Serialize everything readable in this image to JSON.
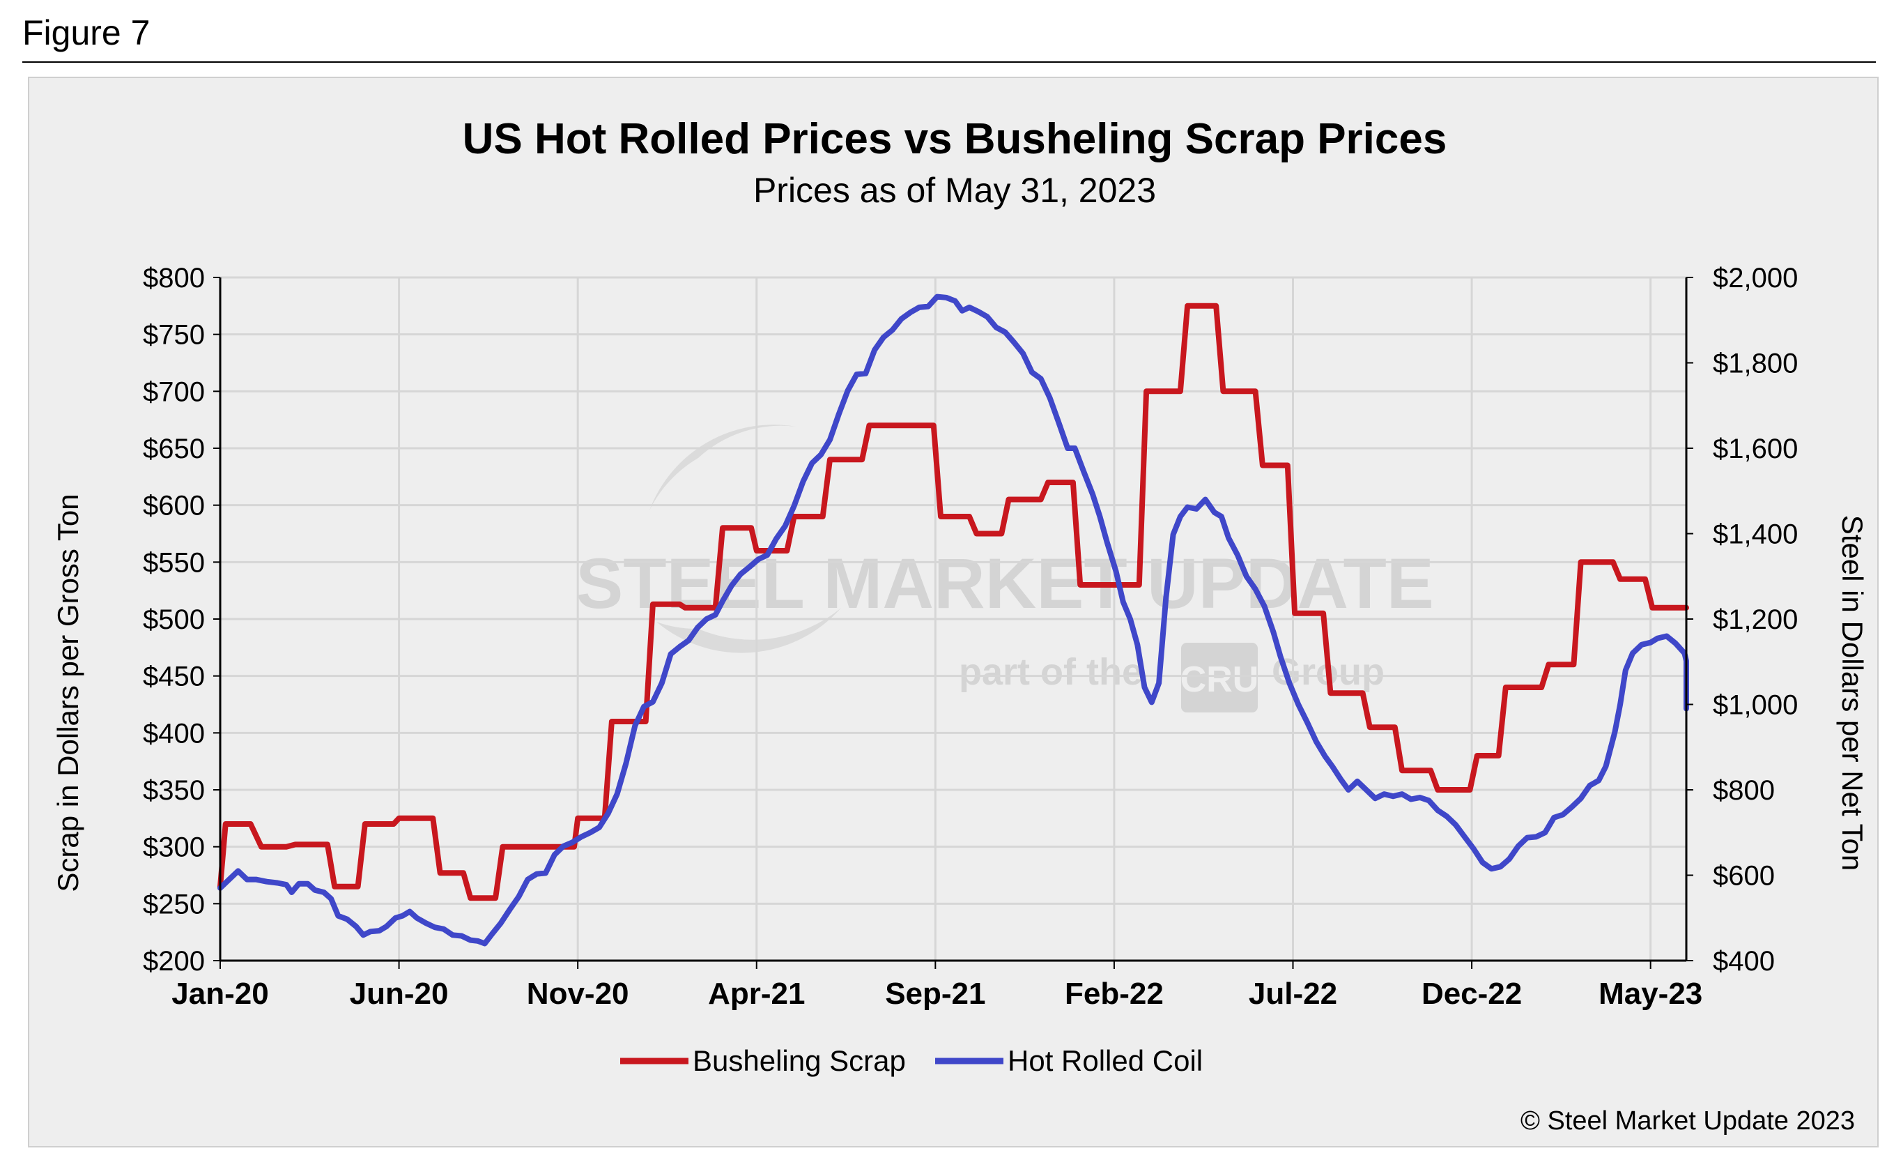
{
  "figure_label": "Figure 7",
  "copyright": "© Steel Market Update 2023",
  "watermark": {
    "brand": "STEEL MARKET UPDATE",
    "tagline_start": "part of the",
    "logo_text": "CRU",
    "tagline_end": "Group"
  },
  "colors": {
    "scrap": "#c8171e",
    "hrc": "#3f47c9",
    "background": "#eeeeee",
    "grid": "#d6d6d6"
  },
  "chart_data": {
    "type": "line",
    "title": "US Hot Rolled Prices vs Busheling Scrap Prices",
    "subtitle": "Prices as of May 31, 2023",
    "ylabel": "Scrap in Dollars per Gross Ton",
    "y2label": "Steel in Dollars per Net Ton",
    "ylim": [
      200,
      800
    ],
    "y2lim": [
      400,
      2000
    ],
    "x_range_months": [
      0,
      41
    ],
    "x_ticks": [
      {
        "month": 0,
        "label": "Jan-20"
      },
      {
        "month": 5,
        "label": "Jun-20"
      },
      {
        "month": 10,
        "label": "Nov-20"
      },
      {
        "month": 15,
        "label": "Apr-21"
      },
      {
        "month": 20,
        "label": "Sep-21"
      },
      {
        "month": 25,
        "label": "Feb-22"
      },
      {
        "month": 30,
        "label": "Jul-22"
      },
      {
        "month": 35,
        "label": "Dec-22"
      },
      {
        "month": 40,
        "label": "May-23"
      }
    ],
    "y_ticks": [
      "$200",
      "$250",
      "$300",
      "$350",
      "$400",
      "$450",
      "$500",
      "$550",
      "$600",
      "$650",
      "$700",
      "$750",
      "$800"
    ],
    "y_tick_values": [
      200,
      250,
      300,
      350,
      400,
      450,
      500,
      550,
      600,
      650,
      700,
      750,
      800
    ],
    "y2_ticks": [
      "$400",
      "$600",
      "$800",
      "$1,000",
      "$1,200",
      "$1,400",
      "$1,600",
      "$1,800",
      "$2,000"
    ],
    "y2_tick_values": [
      400,
      600,
      800,
      1000,
      1200,
      1400,
      1600,
      1800,
      2000
    ],
    "legend_position": "bottom-center",
    "series": [
      {
        "name": "Busheling Scrap",
        "axis": "left",
        "color": "#c8171e",
        "points": [
          [
            0,
            265
          ],
          [
            0.15,
            320
          ],
          [
            0.85,
            320
          ],
          [
            1.15,
            300
          ],
          [
            1.85,
            300
          ],
          [
            2.1,
            302
          ],
          [
            3.0,
            302
          ],
          [
            3.2,
            265
          ],
          [
            3.85,
            265
          ],
          [
            4.05,
            320
          ],
          [
            4.85,
            320
          ],
          [
            5.0,
            325
          ],
          [
            5.95,
            325
          ],
          [
            6.15,
            277
          ],
          [
            6.8,
            277
          ],
          [
            7.0,
            255
          ],
          [
            7.7,
            255
          ],
          [
            7.9,
            300
          ],
          [
            9.9,
            300
          ],
          [
            10.0,
            325
          ],
          [
            10.75,
            325
          ],
          [
            10.95,
            410
          ],
          [
            11.9,
            410
          ],
          [
            12.1,
            513
          ],
          [
            12.85,
            513
          ],
          [
            13.0,
            510
          ],
          [
            13.85,
            510
          ],
          [
            14.05,
            580
          ],
          [
            14.85,
            580
          ],
          [
            15.0,
            560
          ],
          [
            15.85,
            560
          ],
          [
            16.05,
            590
          ],
          [
            16.85,
            590
          ],
          [
            17.05,
            640
          ],
          [
            17.95,
            640
          ],
          [
            18.15,
            670
          ],
          [
            19.95,
            670
          ],
          [
            20.15,
            590
          ],
          [
            20.95,
            590
          ],
          [
            21.15,
            575
          ],
          [
            21.85,
            575
          ],
          [
            22.05,
            605
          ],
          [
            22.95,
            605
          ],
          [
            23.15,
            620
          ],
          [
            23.85,
            620
          ],
          [
            24.05,
            530
          ],
          [
            24.75,
            530
          ],
          [
            24.85,
            530
          ],
          [
            25.7,
            530
          ],
          [
            25.9,
            700
          ],
          [
            26.85,
            700
          ],
          [
            27.05,
            775
          ],
          [
            27.85,
            775
          ],
          [
            28.05,
            700
          ],
          [
            28.95,
            700
          ],
          [
            29.15,
            635
          ],
          [
            29.85,
            635
          ],
          [
            30.05,
            505
          ],
          [
            30.85,
            505
          ],
          [
            31.05,
            435
          ],
          [
            31.95,
            435
          ],
          [
            32.15,
            405
          ],
          [
            32.85,
            405
          ],
          [
            33.05,
            367
          ],
          [
            33.85,
            367
          ],
          [
            34.05,
            350
          ],
          [
            34.95,
            350
          ],
          [
            35.15,
            380
          ],
          [
            35.75,
            380
          ],
          [
            35.95,
            440
          ],
          [
            36.95,
            440
          ],
          [
            37.15,
            460
          ],
          [
            37.85,
            460
          ],
          [
            38.05,
            550
          ],
          [
            38.95,
            550
          ],
          [
            39.15,
            535
          ],
          [
            39.85,
            535
          ],
          [
            40.05,
            510
          ],
          [
            41.0,
            510
          ]
        ]
      },
      {
        "name": "Hot Rolled Coil",
        "axis": "right",
        "color": "#3f47c9",
        "points": [
          [
            0,
            570
          ],
          [
            0.25,
            590
          ],
          [
            0.5,
            610
          ],
          [
            0.75,
            590
          ],
          [
            1.0,
            590
          ],
          [
            1.3,
            585
          ],
          [
            1.6,
            582
          ],
          [
            1.85,
            578
          ],
          [
            2.0,
            560
          ],
          [
            2.2,
            580
          ],
          [
            2.45,
            580
          ],
          [
            2.65,
            565
          ],
          [
            2.9,
            560
          ],
          [
            3.1,
            545
          ],
          [
            3.3,
            505
          ],
          [
            3.55,
            497
          ],
          [
            3.8,
            480
          ],
          [
            4.0,
            460
          ],
          [
            4.2,
            468
          ],
          [
            4.45,
            470
          ],
          [
            4.65,
            480
          ],
          [
            4.9,
            500
          ],
          [
            5.1,
            505
          ],
          [
            5.3,
            515
          ],
          [
            5.5,
            500
          ],
          [
            5.75,
            488
          ],
          [
            6.0,
            478
          ],
          [
            6.25,
            474
          ],
          [
            6.5,
            460
          ],
          [
            6.75,
            458
          ],
          [
            7.0,
            448
          ],
          [
            7.2,
            446
          ],
          [
            7.4,
            440
          ],
          [
            7.6,
            462
          ],
          [
            7.85,
            488
          ],
          [
            8.1,
            520
          ],
          [
            8.35,
            550
          ],
          [
            8.6,
            590
          ],
          [
            8.85,
            603
          ],
          [
            9.1,
            605
          ],
          [
            9.35,
            648
          ],
          [
            9.6,
            668
          ],
          [
            9.85,
            677
          ],
          [
            10.1,
            690
          ],
          [
            10.35,
            700
          ],
          [
            10.6,
            712
          ],
          [
            10.85,
            745
          ],
          [
            11.1,
            790
          ],
          [
            11.35,
            862
          ],
          [
            11.6,
            950
          ],
          [
            11.85,
            995
          ],
          [
            12.1,
            1006
          ],
          [
            12.35,
            1050
          ],
          [
            12.6,
            1118
          ],
          [
            12.85,
            1135
          ],
          [
            13.1,
            1150
          ],
          [
            13.35,
            1180
          ],
          [
            13.6,
            1200
          ],
          [
            13.85,
            1210
          ],
          [
            14.05,
            1242
          ],
          [
            14.3,
            1278
          ],
          [
            14.55,
            1305
          ],
          [
            14.8,
            1322
          ],
          [
            15.05,
            1340
          ],
          [
            15.3,
            1350
          ],
          [
            15.55,
            1388
          ],
          [
            15.8,
            1418
          ],
          [
            16.05,
            1465
          ],
          [
            16.3,
            1522
          ],
          [
            16.55,
            1565
          ],
          [
            16.8,
            1585
          ],
          [
            17.05,
            1620
          ],
          [
            17.3,
            1680
          ],
          [
            17.55,
            1735
          ],
          [
            17.8,
            1773
          ],
          [
            18.05,
            1775
          ],
          [
            18.3,
            1830
          ],
          [
            18.55,
            1860
          ],
          [
            18.8,
            1877
          ],
          [
            19.05,
            1903
          ],
          [
            19.3,
            1918
          ],
          [
            19.55,
            1930
          ],
          [
            19.8,
            1932
          ],
          [
            20.05,
            1955
          ],
          [
            20.3,
            1953
          ],
          [
            20.55,
            1945
          ],
          [
            20.75,
            1922
          ],
          [
            20.95,
            1930
          ],
          [
            21.2,
            1920
          ],
          [
            21.45,
            1908
          ],
          [
            21.7,
            1883
          ],
          [
            21.95,
            1872
          ],
          [
            22.2,
            1848
          ],
          [
            22.45,
            1822
          ],
          [
            22.7,
            1778
          ],
          [
            22.95,
            1763
          ],
          [
            23.2,
            1718
          ],
          [
            23.45,
            1660
          ],
          [
            23.7,
            1600
          ],
          [
            23.9,
            1600
          ],
          [
            24.15,
            1545
          ],
          [
            24.4,
            1492
          ],
          [
            24.6,
            1440
          ],
          [
            24.8,
            1380
          ],
          [
            25.05,
            1312
          ],
          [
            25.25,
            1240
          ],
          [
            25.45,
            1200
          ],
          [
            25.65,
            1140
          ],
          [
            25.85,
            1040
          ],
          [
            26.05,
            1005
          ],
          [
            26.25,
            1050
          ],
          [
            26.45,
            1250
          ],
          [
            26.65,
            1398
          ],
          [
            26.85,
            1440
          ],
          [
            27.05,
            1462
          ],
          [
            27.3,
            1458
          ],
          [
            27.55,
            1480
          ],
          [
            27.8,
            1450
          ],
          [
            28.0,
            1440
          ],
          [
            28.2,
            1390
          ],
          [
            28.45,
            1350
          ],
          [
            28.7,
            1300
          ],
          [
            28.95,
            1270
          ],
          [
            29.2,
            1230
          ],
          [
            29.45,
            1170
          ],
          [
            29.65,
            1112
          ],
          [
            29.9,
            1050
          ],
          [
            30.15,
            1000
          ],
          [
            30.4,
            958
          ],
          [
            30.65,
            913
          ],
          [
            30.9,
            878
          ],
          [
            31.1,
            855
          ],
          [
            31.35,
            823
          ],
          [
            31.55,
            800
          ],
          [
            31.8,
            820
          ],
          [
            32.05,
            800
          ],
          [
            32.3,
            780
          ],
          [
            32.55,
            790
          ],
          [
            32.8,
            785
          ],
          [
            33.05,
            790
          ],
          [
            33.3,
            778
          ],
          [
            33.55,
            782
          ],
          [
            33.8,
            775
          ],
          [
            34.05,
            752
          ],
          [
            34.3,
            738
          ],
          [
            34.55,
            718
          ],
          [
            34.8,
            690
          ],
          [
            35.05,
            662
          ],
          [
            35.3,
            630
          ],
          [
            35.55,
            615
          ],
          [
            35.8,
            620
          ],
          [
            36.05,
            638
          ],
          [
            36.3,
            668
          ],
          [
            36.55,
            688
          ],
          [
            36.8,
            690
          ],
          [
            37.05,
            700
          ],
          [
            37.3,
            735
          ],
          [
            37.55,
            742
          ],
          [
            37.8,
            760
          ],
          [
            38.05,
            780
          ],
          [
            38.3,
            810
          ],
          [
            38.55,
            822
          ],
          [
            38.75,
            855
          ],
          [
            39.0,
            935
          ],
          [
            39.15,
            1000
          ],
          [
            39.3,
            1080
          ],
          [
            39.5,
            1120
          ],
          [
            39.75,
            1140
          ],
          [
            40.0,
            1145
          ],
          [
            40.2,
            1155
          ],
          [
            40.45,
            1160
          ],
          [
            40.7,
            1143
          ],
          [
            40.95,
            1120
          ],
          [
            41.2,
            1102
          ],
          [
            41.45,
            1063
          ],
          [
            41.7,
            1033
          ],
          [
            41.9,
            990
          ],
          [
            42.1,
            988
          ]
        ]
      }
    ]
  }
}
